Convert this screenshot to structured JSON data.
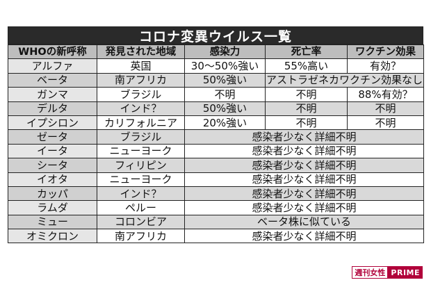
{
  "title": "コロナ変異ウイルス一覧",
  "headers": [
    "WHOの新呼称",
    "発見された地域",
    "感染力",
    "死亡率",
    "ワクチン効果"
  ],
  "rows": [
    {
      "name": "アルファ",
      "region": "英国",
      "cells": [
        "30〜50%強い",
        "55%高い",
        "有効？"
      ]
    },
    {
      "name": "ベータ",
      "region": "南アフリカ",
      "cells": [
        "50%強い",
        "アストラゼネカワクチン効果なし"
      ]
    },
    {
      "name": "ガンマ",
      "region": "ブラジル",
      "cells": [
        "不明",
        "不明",
        "88%有効？"
      ]
    },
    {
      "name": "デルタ",
      "region": "インド？",
      "cells": [
        "50%強い",
        "不明",
        "不明"
      ]
    },
    {
      "name": "イプシロン",
      "region": "カリフォルニア",
      "cells": [
        "20%強い",
        "不明",
        "不明"
      ]
    },
    {
      "name": "ゼータ",
      "region": "ブラジル",
      "cells": [
        "感染者少なく詳細不明"
      ]
    },
    {
      "name": "イータ",
      "region": "ニューヨーク",
      "cells": [
        "感染者少なく詳細不明"
      ]
    },
    {
      "name": "シータ",
      "region": "フィリピン",
      "cells": [
        "感染者少なく詳細不明"
      ]
    },
    {
      "name": "イオタ",
      "region": "ニューヨーク",
      "cells": [
        "感染者少なく詳細不明"
      ]
    },
    {
      "name": "カッパ",
      "region": "インド？",
      "cells": [
        "感染者少なく詳細不明"
      ]
    },
    {
      "name": "ラムダ",
      "region": "ペルー",
      "cells": [
        "感染者少なく詳細不明"
      ]
    },
    {
      "name": "ミュー",
      "region": "コロンビア",
      "cells": [
        "ベータ株に似ている"
      ]
    },
    {
      "name": "オミクロン",
      "region": "南アフリカ",
      "cells": [
        "感染者少なく詳細不明"
      ]
    }
  ],
  "watermark": {
    "left": "週刊女性",
    "right": "PRIME"
  }
}
